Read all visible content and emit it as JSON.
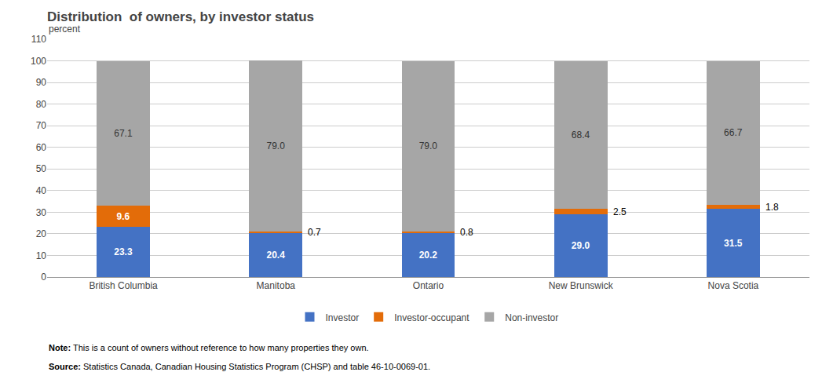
{
  "chart_data": {
    "type": "bar",
    "title": "Distribution  of owners, by investor status",
    "ylabel": "percent",
    "categories": [
      "British Columbia",
      "Manitoba",
      "Ontario",
      "New Brunswick",
      "Nova Scotia"
    ],
    "series": [
      {
        "name": "Investor",
        "color": "#4472C4",
        "values": [
          23.3,
          20.4,
          20.2,
          29.0,
          31.5
        ],
        "value_labels": [
          "23.3",
          "20.4",
          "20.2",
          "29.0",
          "31.5"
        ]
      },
      {
        "name": "Investor-occupant",
        "color": "#E36C09",
        "values": [
          9.6,
          0.7,
          0.8,
          2.5,
          1.8
        ],
        "value_labels": [
          "9.6",
          "0.7",
          "0.8",
          "2.5",
          "1.8"
        ]
      },
      {
        "name": "Non-investor",
        "color": "#A6A6A6",
        "values": [
          67.1,
          79.0,
          79.0,
          68.4,
          66.7
        ],
        "value_labels": [
          "67.1",
          "79.0",
          "79.0",
          "68.4",
          "66.7"
        ]
      }
    ],
    "stacked": true,
    "data_labels": true,
    "ylim": [
      0,
      110
    ],
    "yticks": [
      0,
      10,
      20,
      30,
      40,
      50,
      60,
      70,
      80,
      90,
      100,
      110
    ],
    "grid": true,
    "legend": "bottom",
    "annotations": [
      "Note: This is a count of owners without reference to how many properties they own.",
      "Source: Statistics Canada, Canadian Housing Statistics Program (CHSP) and table 46-10-0069-01."
    ]
  }
}
